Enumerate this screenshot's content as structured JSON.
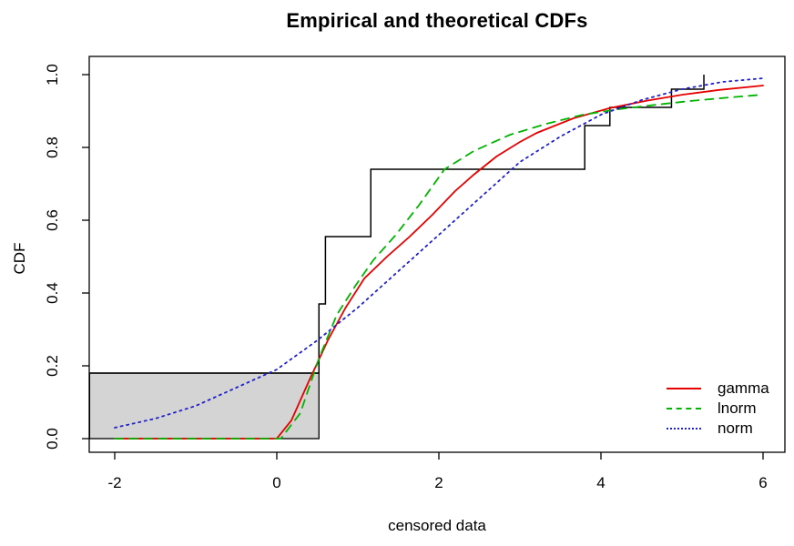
{
  "title": "Empirical and theoretical CDFs",
  "axes": {
    "x_label": "censored data",
    "y_label": "CDF",
    "x_tick_labels": [
      "-2",
      "0",
      "2",
      "4",
      "6"
    ],
    "y_tick_labels": [
      "0.0",
      "0.2",
      "0.4",
      "0.6",
      "0.8",
      "1.0"
    ]
  },
  "legend": {
    "position": "bottom-right",
    "entries": [
      {
        "label": "gamma",
        "color": "#e60000",
        "style": "solid"
      },
      {
        "label": "lnorm",
        "color": "#00b400",
        "style": "dashed"
      },
      {
        "label": "norm",
        "color": "#2222cc",
        "style": "dotted"
      }
    ]
  },
  "chart_data": {
    "type": "line",
    "title": "Empirical and theoretical CDFs",
    "xlabel": "censored data",
    "ylabel": "CDF",
    "x_ticks": [
      -2,
      0,
      2,
      4,
      6
    ],
    "y_ticks": [
      0,
      0.2,
      0.4,
      0.6,
      0.8,
      1.0
    ],
    "xlim": [
      -2.31,
      6.27
    ],
    "ylim": [
      -0.0375,
      1.05
    ],
    "grid": false,
    "legend_position": "bottom-right",
    "censored_region": {
      "note": "shaded rectangle for censored equivalence class",
      "x0": -2.31,
      "x1": 0.52,
      "y0": 0.0,
      "y1": 0.18,
      "fill": "#d4d4d4",
      "stroke": "#000000"
    },
    "empirical_cdf": {
      "name": "empirical CDF (censored data, step function)",
      "color": "#000000",
      "style": "step",
      "points": [
        [
          -2.31,
          0.18
        ],
        [
          0.52,
          0.18
        ],
        [
          0.52,
          0.37
        ],
        [
          0.6,
          0.37
        ],
        [
          0.6,
          0.555
        ],
        [
          1.16,
          0.555
        ],
        [
          1.16,
          0.74
        ],
        [
          3.8,
          0.74
        ],
        [
          3.8,
          0.86
        ],
        [
          4.11,
          0.86
        ],
        [
          4.11,
          0.91
        ],
        [
          4.87,
          0.91
        ],
        [
          4.87,
          0.96
        ],
        [
          5.27,
          0.96
        ],
        [
          5.27,
          1.0
        ]
      ]
    },
    "series": [
      {
        "name": "gamma",
        "color": "#e60000",
        "style": "solid",
        "x": [
          -2,
          0,
          0.18,
          0.4,
          0.63,
          0.85,
          1.08,
          1.36,
          1.64,
          1.92,
          2.2,
          2.43,
          2.71,
          3.0,
          3.21,
          3.66,
          4.11,
          4.56,
          5.01,
          5.46,
          6.0
        ],
        "y": [
          0,
          0,
          0.05,
          0.16,
          0.27,
          0.36,
          0.44,
          0.5,
          0.555,
          0.615,
          0.68,
          0.725,
          0.775,
          0.815,
          0.84,
          0.88,
          0.908,
          0.928,
          0.945,
          0.958,
          0.97
        ]
      },
      {
        "name": "lnorm",
        "color": "#00b400",
        "style": "dashed",
        "x": [
          -2,
          0.05,
          0.29,
          0.52,
          0.74,
          0.97,
          1.19,
          1.47,
          1.75,
          2.07,
          2.43,
          2.88,
          3.33,
          3.78,
          4.22,
          4.67,
          5.12,
          5.57,
          6.0
        ],
        "y": [
          0,
          0,
          0.07,
          0.22,
          0.34,
          0.42,
          0.49,
          0.56,
          0.64,
          0.74,
          0.79,
          0.835,
          0.865,
          0.89,
          0.905,
          0.917,
          0.928,
          0.937,
          0.945
        ]
      },
      {
        "name": "norm",
        "color": "#2222cc",
        "style": "dotted",
        "x": [
          -2,
          -1.5,
          -1,
          -0.5,
          0,
          0.5,
          1,
          1.5,
          2,
          2.5,
          3,
          3.5,
          4,
          4.5,
          5,
          5.5,
          6
        ],
        "y": [
          0.03,
          0.055,
          0.09,
          0.14,
          0.19,
          0.27,
          0.36,
          0.46,
          0.56,
          0.66,
          0.76,
          0.83,
          0.89,
          0.93,
          0.96,
          0.98,
          0.99
        ]
      }
    ]
  }
}
